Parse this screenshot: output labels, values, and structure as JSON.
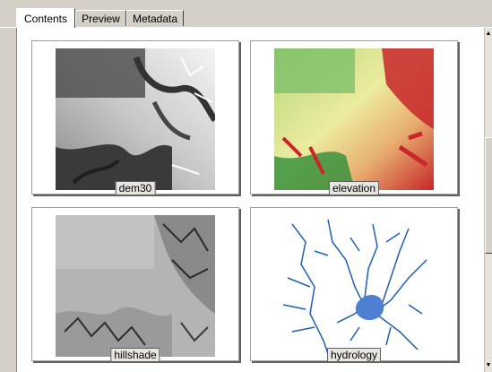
{
  "tabs": [
    {
      "label": "Contents",
      "active": true
    },
    {
      "label": "Preview",
      "active": false
    },
    {
      "label": "Metadata",
      "active": false
    }
  ],
  "thumbnails": [
    {
      "label": "dem30",
      "kind": "grayscale-dem"
    },
    {
      "label": "elevation",
      "kind": "color-elevation"
    },
    {
      "label": "hillshade",
      "kind": "hillshade"
    },
    {
      "label": "hydrology",
      "kind": "stream-network"
    }
  ],
  "colors": {
    "window_bg": "#d4d0c8",
    "panel_bg": "#ffffff",
    "elev_low": "#2f8d3a",
    "elev_mid": "#e8e89a",
    "elev_high": "#c8262a",
    "stream": "#1f5fb4"
  }
}
